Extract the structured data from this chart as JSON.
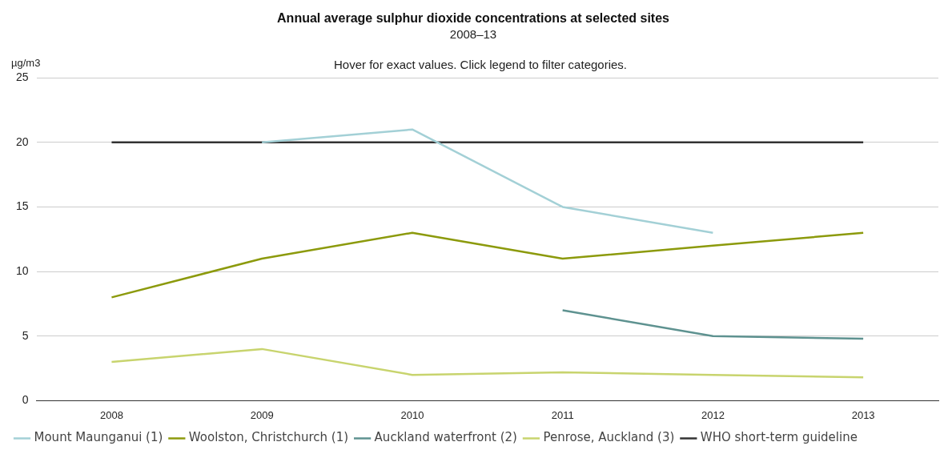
{
  "chart_data": {
    "type": "line",
    "title": "Annual average sulphur dioxide concentrations at selected sites",
    "subtitle": "2008–13",
    "annotations": [
      "Hover for exact values. Click legend to filter categories."
    ],
    "ylabel": "µg/m3",
    "categories": [
      "2008",
      "2009",
      "2010",
      "2011",
      "2012",
      "2013"
    ],
    "series": [
      {
        "name": "Mount Maunganui (1)",
        "color": "#a3d0d6",
        "values": [
          null,
          20,
          21,
          15,
          13,
          null
        ]
      },
      {
        "name": "Woolston, Christchurch (1)",
        "color": "#8c9a0c",
        "values": [
          8,
          11,
          13,
          11,
          12,
          13
        ]
      },
      {
        "name": "Auckland waterfront (2)",
        "color": "#5e9290",
        "values": [
          null,
          null,
          null,
          7,
          5,
          4.8
        ]
      },
      {
        "name": "Penrose, Auckland (3)",
        "color": "#c8d46e",
        "values": [
          3,
          4,
          2,
          2.2,
          2,
          1.8
        ]
      },
      {
        "name": "WHO short-term guideline",
        "color": "#333333",
        "values": [
          20,
          20,
          20,
          20,
          20,
          20
        ]
      }
    ],
    "ylim": [
      0,
      25
    ],
    "yticks": [
      0,
      5,
      10,
      15,
      20,
      25
    ],
    "grid": "y",
    "legend": "bottom",
    "marker": "none",
    "line_style": "solid"
  }
}
